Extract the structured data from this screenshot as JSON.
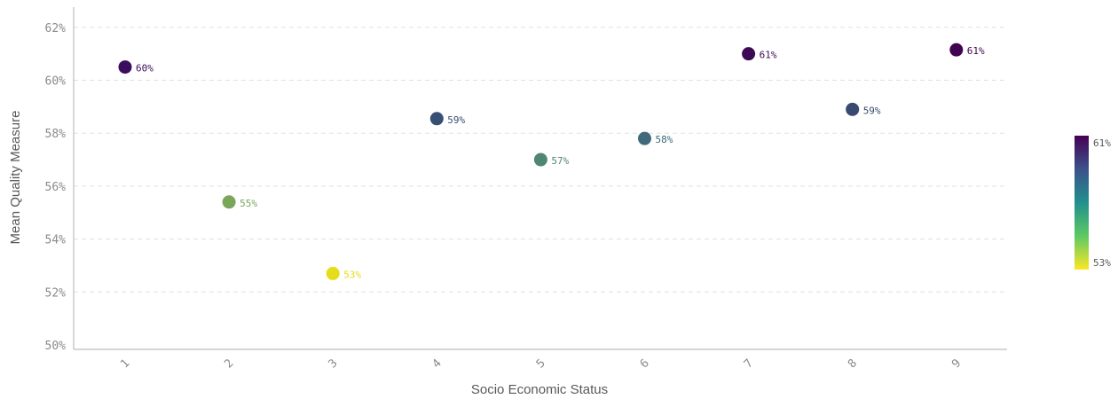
{
  "chart_data": {
    "type": "scatter",
    "xlabel": "Socio Economic Status",
    "ylabel": "Mean Quality Measure",
    "x_categories": [
      "1",
      "2",
      "3",
      "4",
      "5",
      "6",
      "7",
      "8",
      "9"
    ],
    "ylim": [
      50,
      63
    ],
    "y_ticks": [
      50,
      52,
      54,
      56,
      58,
      60,
      62
    ],
    "y_tick_labels": [
      "50%",
      "52%",
      "54%",
      "56%",
      "58%",
      "60%",
      "62%"
    ],
    "grid": true,
    "points": [
      {
        "x": "1",
        "y": 60.5,
        "label": "60%",
        "color": "#3a0d5e"
      },
      {
        "x": "2",
        "y": 55.4,
        "label": "55%",
        "color": "#7aa65a"
      },
      {
        "x": "3",
        "y": 52.7,
        "label": "53%",
        "color": "#e5dd1a"
      },
      {
        "x": "4",
        "y": 58.55,
        "label": "59%",
        "color": "#364f73"
      },
      {
        "x": "5",
        "y": 57.0,
        "label": "57%",
        "color": "#4f8573"
      },
      {
        "x": "6",
        "y": 57.8,
        "label": "58%",
        "color": "#406a7c"
      },
      {
        "x": "7",
        "y": 61.0,
        "label": "61%",
        "color": "#3c0a55"
      },
      {
        "x": "8",
        "y": 58.9,
        "label": "59%",
        "color": "#374a70"
      },
      {
        "x": "9",
        "y": 61.15,
        "label": "61%",
        "color": "#410450"
      }
    ],
    "color_legend": {
      "placement": "right",
      "max_label": "61%",
      "min_label": "53%",
      "stops": [
        "#440154",
        "#3b528b",
        "#21908d",
        "#5dc963",
        "#fde725"
      ]
    }
  }
}
